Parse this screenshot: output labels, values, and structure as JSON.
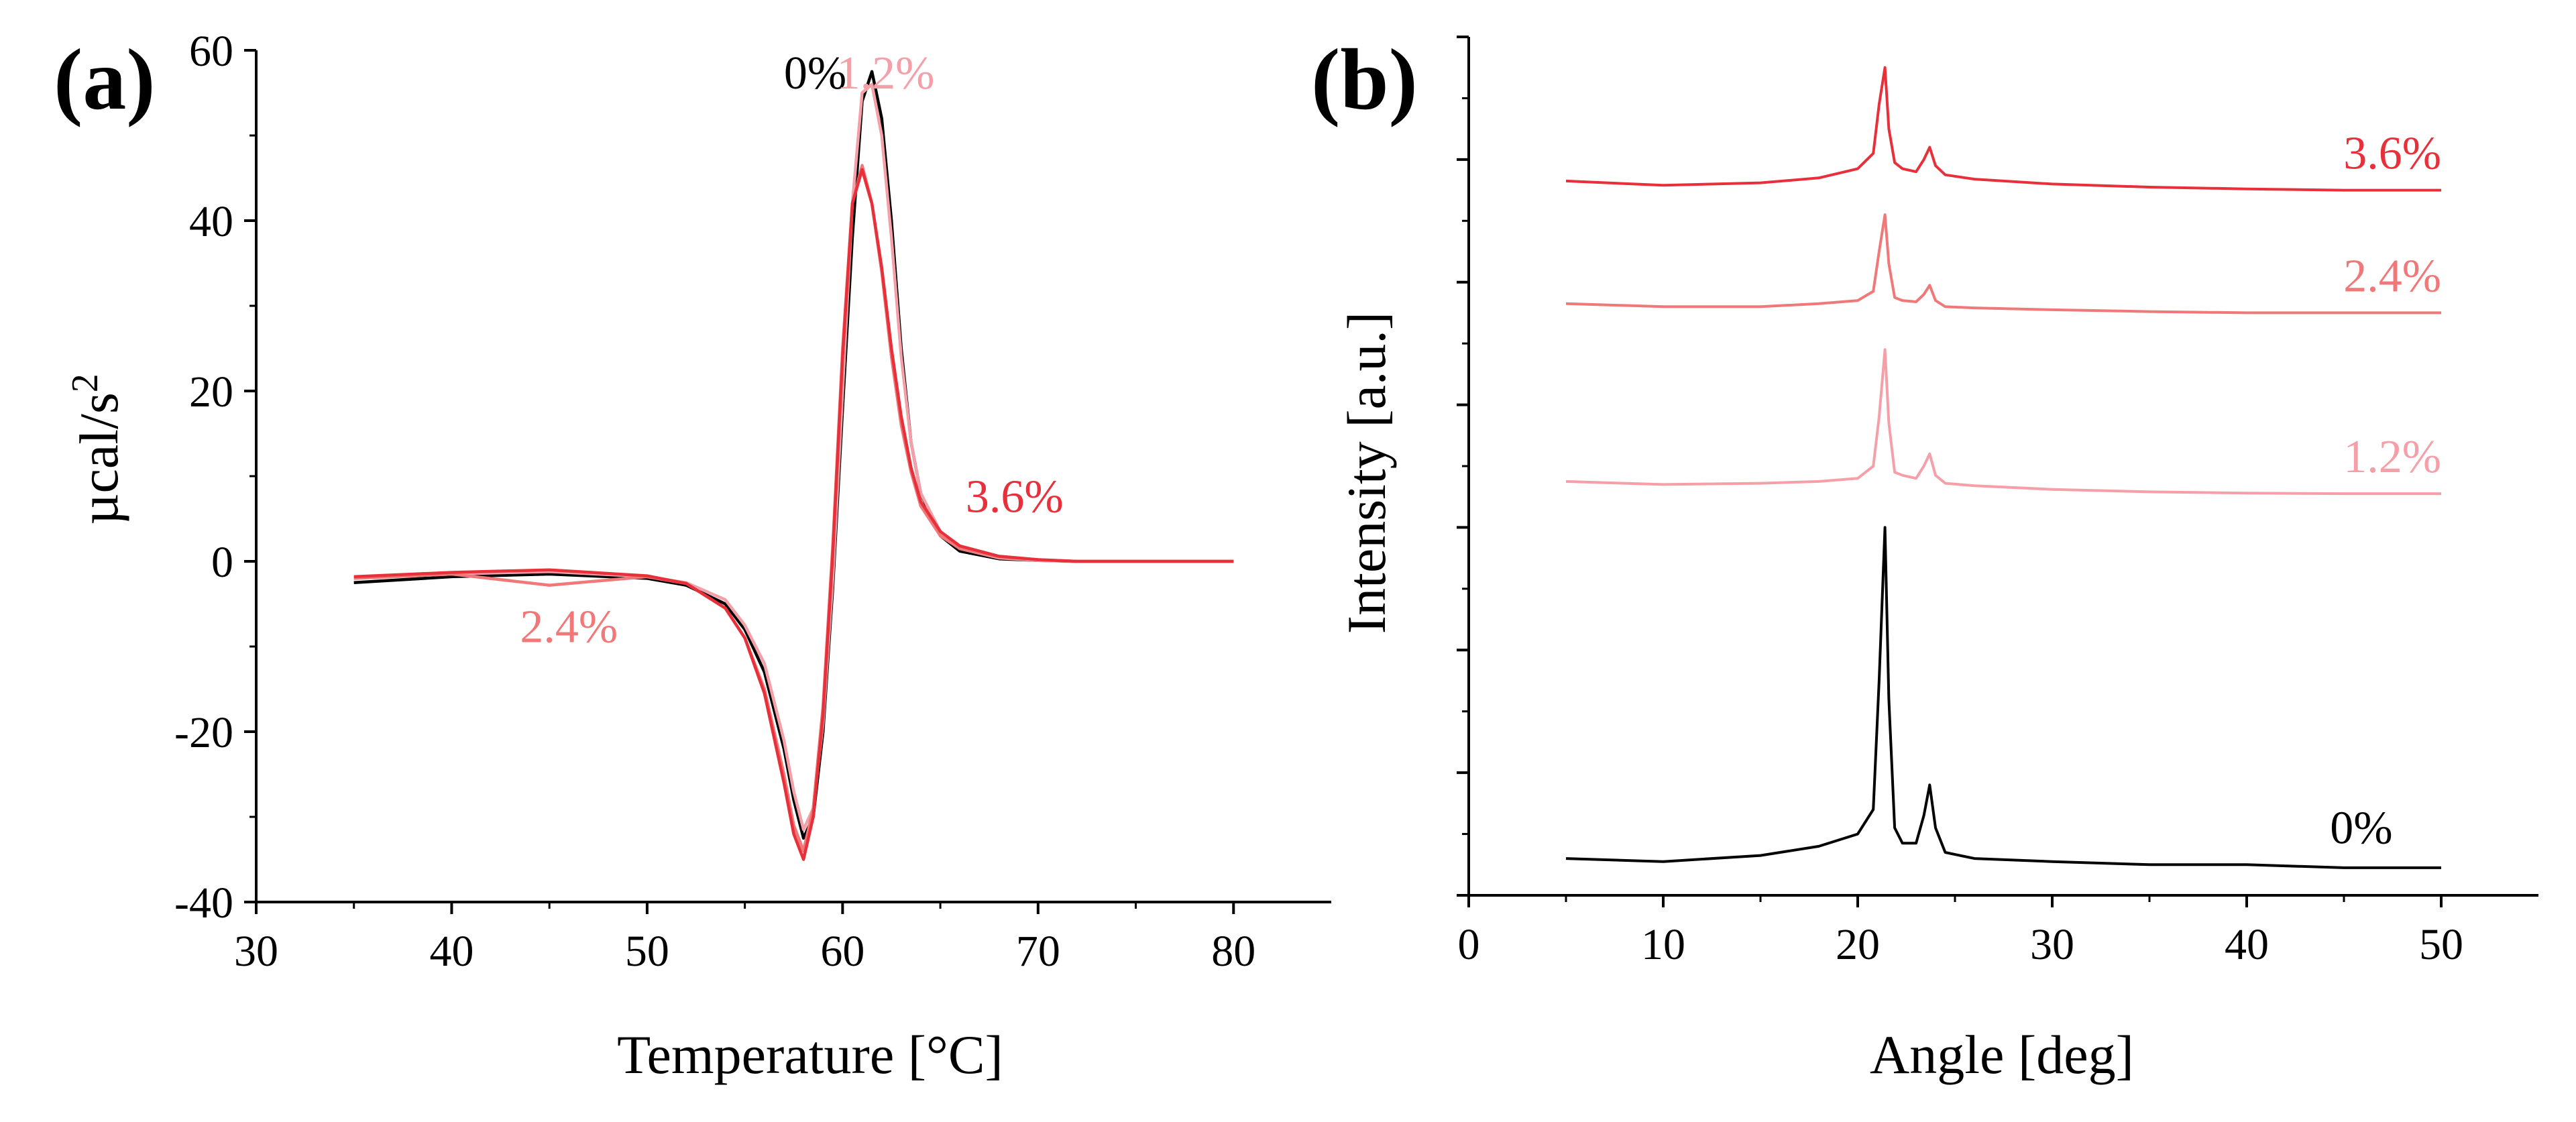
{
  "colors": {
    "axis": "#000000",
    "c0": "#000000",
    "c12": "#f5a0a8",
    "c24": "#f07878",
    "c36": "#e8303a"
  },
  "chart_data": [
    {
      "panel_label": "(a)",
      "type": "line",
      "title": "",
      "xlabel": "Temperature [°C]",
      "ylabel_main": "µcal/s",
      "ylabel_sup": "2",
      "xlim": [
        30,
        85
      ],
      "ylim": [
        -40,
        60
      ],
      "xticks": [
        30,
        40,
        50,
        60,
        70,
        80
      ],
      "yticks": [
        -40,
        -20,
        0,
        20,
        40,
        60
      ],
      "x": [
        35,
        40,
        45,
        50,
        52,
        54,
        55,
        56,
        57,
        57.5,
        58,
        58.5,
        59,
        59.5,
        60,
        60.5,
        61,
        61.5,
        62,
        62.5,
        63,
        63.5,
        64,
        65,
        66,
        68,
        70,
        72,
        75,
        80
      ],
      "series": [
        {
          "name": "0%",
          "color_key": "c0",
          "x_end": 72,
          "values": [
            -2.5,
            -1.8,
            -1.5,
            -2.0,
            -2.8,
            -5.0,
            -8.0,
            -13.0,
            -22.0,
            -28.0,
            -32.5,
            -30.0,
            -20.0,
            -3.0,
            18.0,
            38.0,
            54.0,
            57.5,
            52.0,
            40.0,
            25.0,
            14.0,
            8.0,
            3.0,
            1.2,
            0.3,
            0.1,
            0.0,
            0.0,
            0.0
          ]
        },
        {
          "name": "1.2%",
          "color_key": "c12",
          "x_end": 80,
          "values": [
            -2.0,
            -1.5,
            -1.2,
            -1.8,
            -2.5,
            -4.5,
            -7.5,
            -12.0,
            -21.0,
            -27.0,
            -31.5,
            -29.0,
            -19.0,
            -2.0,
            20.0,
            42.0,
            55.0,
            56.0,
            50.0,
            38.0,
            24.0,
            14.0,
            8.0,
            3.5,
            1.5,
            0.4,
            0.1,
            0.0,
            0.0,
            0.0
          ]
        },
        {
          "name": "2.4%",
          "color_key": "c24",
          "x_end": 80,
          "values": [
            -2.0,
            -1.5,
            -2.8,
            -1.8,
            -2.6,
            -5.5,
            -9.0,
            -15.0,
            -25.0,
            -31.0,
            -34.0,
            -29.0,
            -17.0,
            2.0,
            25.0,
            42.0,
            46.5,
            42.0,
            34.0,
            24.0,
            16.0,
            10.5,
            6.5,
            3.0,
            1.5,
            0.5,
            0.2,
            0.0,
            0.0,
            0.0
          ]
        },
        {
          "name": "3.6%",
          "color_key": "c36",
          "x_end": 80,
          "values": [
            -1.8,
            -1.3,
            -1.0,
            -1.7,
            -2.6,
            -5.5,
            -9.0,
            -15.5,
            -26.0,
            -32.0,
            -35.0,
            -30.0,
            -18.0,
            1.0,
            24.0,
            42.0,
            46.0,
            42.0,
            34.5,
            25.0,
            17.0,
            11.0,
            7.0,
            3.5,
            1.8,
            0.6,
            0.2,
            0.0,
            0.0,
            0.0
          ]
        }
      ],
      "annotations": [
        {
          "text": "0%",
          "x": 58.6,
          "y": 55.5,
          "color_key": "c0"
        },
        {
          "text": "1.2%",
          "x": 62.2,
          "y": 55.5,
          "color_key": "c12"
        },
        {
          "text": "3.6%",
          "x": 68.8,
          "y": 5.8,
          "color_key": "c36"
        },
        {
          "text": "2.4%",
          "x": 46.0,
          "y": -9.5,
          "color_key": "c24"
        }
      ]
    },
    {
      "panel_label": "(b)",
      "type": "line",
      "title": "",
      "xlabel": "Angle [deg]",
      "ylabel": "Intensity [a.u.]",
      "xlim": [
        0,
        55
      ],
      "ylim": [
        0,
        14
      ],
      "xticks": [
        0,
        10,
        20,
        30,
        40,
        50
      ],
      "y_ticks_labeled": false,
      "baselines": {
        "0%": 0.5,
        "1.2%": 6.55,
        "2.4%": 9.5,
        "3.6%": 11.5
      },
      "x": [
        5,
        10,
        15,
        18,
        20,
        20.8,
        21.1,
        21.4,
        21.6,
        21.9,
        22.3,
        23.0,
        23.4,
        23.7,
        24.0,
        24.5,
        26,
        30,
        35,
        40,
        45,
        50
      ],
      "series": [
        {
          "name": "0%",
          "color_key": "c0",
          "values": [
            0.6,
            0.55,
            0.65,
            0.8,
            1.0,
            1.4,
            3.5,
            6.0,
            3.2,
            1.1,
            0.85,
            0.85,
            1.3,
            1.8,
            1.1,
            0.7,
            0.6,
            0.55,
            0.5,
            0.5,
            0.45,
            0.45
          ]
        },
        {
          "name": "1.2%",
          "color_key": "c12",
          "values": [
            6.75,
            6.7,
            6.72,
            6.75,
            6.8,
            7.0,
            7.8,
            8.9,
            7.7,
            6.9,
            6.85,
            6.8,
            7.0,
            7.2,
            6.85,
            6.72,
            6.68,
            6.62,
            6.58,
            6.56,
            6.55,
            6.55
          ]
        },
        {
          "name": "2.4%",
          "color_key": "c24",
          "values": [
            9.65,
            9.6,
            9.6,
            9.65,
            9.7,
            9.85,
            10.5,
            11.1,
            10.3,
            9.75,
            9.7,
            9.68,
            9.8,
            9.95,
            9.7,
            9.6,
            9.58,
            9.55,
            9.52,
            9.5,
            9.5,
            9.5
          ]
        },
        {
          "name": "3.6%",
          "color_key": "c36",
          "values": [
            11.65,
            11.58,
            11.62,
            11.7,
            11.85,
            12.1,
            12.9,
            13.5,
            12.5,
            11.95,
            11.85,
            11.8,
            12.0,
            12.2,
            11.9,
            11.75,
            11.68,
            11.6,
            11.55,
            11.52,
            11.5,
            11.5
          ]
        }
      ],
      "annotations": [
        {
          "text": "3.6%",
          "x": 50,
          "y": 11.85,
          "color_key": "c36"
        },
        {
          "text": "2.4%",
          "x": 50,
          "y": 9.85,
          "color_key": "c24"
        },
        {
          "text": "1.2%",
          "x": 50,
          "y": 6.9,
          "color_key": "c12"
        },
        {
          "text": "0%",
          "x": 47.5,
          "y": 0.85,
          "color_key": "c0"
        }
      ]
    }
  ]
}
